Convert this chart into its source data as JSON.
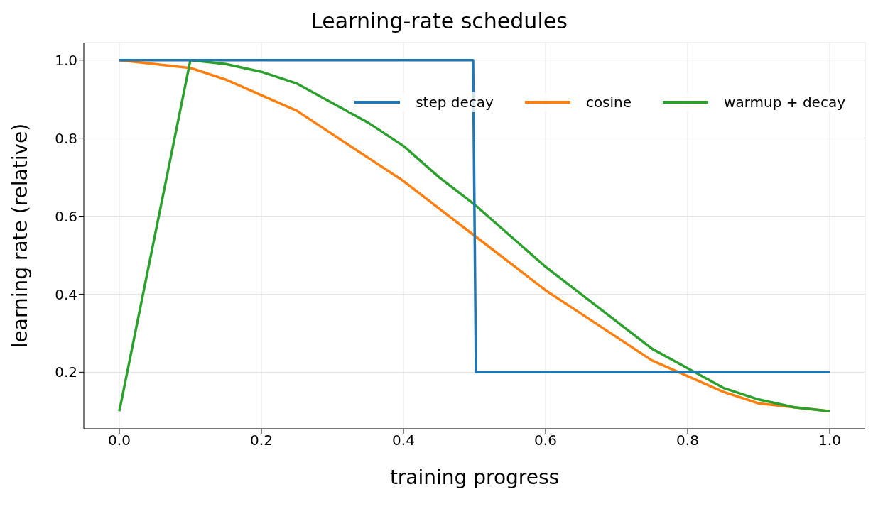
{
  "chart_data": {
    "type": "line",
    "title": "Learning-rate schedules",
    "xlabel": "training progress",
    "ylabel": "learning rate (relative)",
    "xlim": [
      -0.05,
      1.05
    ],
    "ylim": [
      0.055,
      1.045
    ],
    "xticks": [
      {
        "value": 0,
        "label": "0.0"
      },
      {
        "value": 0.2,
        "label": "0.2"
      },
      {
        "value": 0.4,
        "label": "0.4"
      },
      {
        "value": 0.6,
        "label": "0.6"
      },
      {
        "value": 0.8,
        "label": "0.8"
      },
      {
        "value": 1,
        "label": "1.0"
      }
    ],
    "yticks": [
      {
        "value": 0.2,
        "label": "0.2"
      },
      {
        "value": 0.4,
        "label": "0.4"
      },
      {
        "value": 0.6,
        "label": "0.6"
      },
      {
        "value": 0.8,
        "label": "0.8"
      },
      {
        "value": 1,
        "label": "1.0"
      }
    ],
    "grid": true,
    "legend": "top right",
    "marker": "none",
    "line_style": "solid",
    "series": [
      {
        "name": "step decay",
        "color": "#1f77b4",
        "x": [
          0,
          0.498,
          0.502,
          1
        ],
        "values": [
          1,
          1,
          0.2,
          0.2
        ]
      },
      {
        "name": "cosine",
        "color": "#ff7f0e",
        "x": [
          0,
          0.05,
          0.1,
          0.15,
          0.2,
          0.25,
          0.3,
          0.35,
          0.4,
          0.45,
          0.5,
          0.55,
          0.6,
          0.65,
          0.7,
          0.75,
          0.8,
          0.85,
          0.9,
          0.95,
          1
        ],
        "values": [
          1,
          0.99,
          0.98,
          0.95,
          0.91,
          0.87,
          0.81,
          0.75,
          0.69,
          0.62,
          0.55,
          0.48,
          0.41,
          0.35,
          0.29,
          0.23,
          0.19,
          0.15,
          0.12,
          0.11,
          0.1
        ]
      },
      {
        "name": "warmup + decay",
        "color": "#2ca02c",
        "x": [
          0,
          0.1,
          0.15,
          0.2,
          0.25,
          0.3,
          0.35,
          0.4,
          0.45,
          0.5,
          0.55,
          0.6,
          0.65,
          0.7,
          0.75,
          0.8,
          0.85,
          0.9,
          0.95,
          1
        ],
        "values": [
          0.1,
          1,
          0.99,
          0.97,
          0.94,
          0.89,
          0.84,
          0.78,
          0.7,
          0.63,
          0.55,
          0.47,
          0.4,
          0.33,
          0.26,
          0.21,
          0.16,
          0.13,
          0.11,
          0.1
        ]
      }
    ]
  }
}
